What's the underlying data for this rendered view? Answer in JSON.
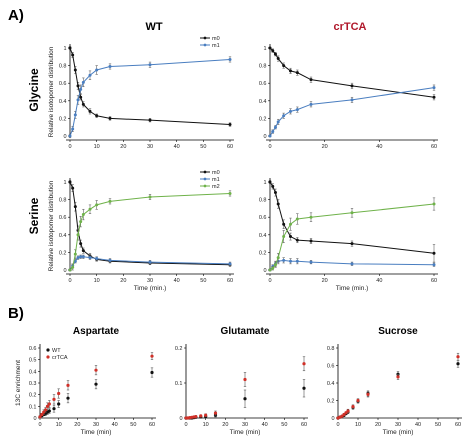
{
  "panel_a_label": "A)",
  "panel_b_label": "B)",
  "col_titles": [
    {
      "text": "WT",
      "color": "#000000"
    },
    {
      "text": "crTCA",
      "color": "#b0182b"
    }
  ],
  "row_titles": [
    "Glycine",
    "Serine"
  ],
  "colors": {
    "m0": "#111111",
    "m1": "#4a7ec0",
    "m2": "#6fb24a",
    "wt": "#111111",
    "crtca": "#d03028"
  },
  "chart_data": [
    {
      "id": "glycine-wt",
      "type": "line",
      "ylabel": "Relative isotopomer distribution",
      "xlabel": "",
      "xlim": [
        0,
        60
      ],
      "ylim": [
        0,
        1
      ],
      "xticks": [
        0,
        10,
        20,
        30,
        40,
        50,
        60
      ],
      "yticks": [
        0,
        0.2,
        0.4,
        0.6,
        0.8,
        1
      ],
      "ytick_labels": [
        "0",
        "0.2",
        "0.4",
        "0.6",
        "0.8",
        "1"
      ],
      "legend": [
        "m0",
        "m1"
      ],
      "series": [
        {
          "name": "m0",
          "color_key": "m0",
          "x": [
            0,
            1,
            2,
            3,
            4,
            5,
            7.5,
            10,
            15,
            30,
            60
          ],
          "y": [
            1.0,
            0.92,
            0.75,
            0.57,
            0.44,
            0.36,
            0.28,
            0.23,
            0.2,
            0.18,
            0.13
          ],
          "err": [
            0.02,
            0.03,
            0.04,
            0.04,
            0.03,
            0.03,
            0.03,
            0.02,
            0.02,
            0.02,
            0.02
          ]
        },
        {
          "name": "m1",
          "color_key": "m1",
          "x": [
            0,
            1,
            2,
            3,
            4,
            5,
            7.5,
            10,
            15,
            30,
            60
          ],
          "y": [
            0.0,
            0.08,
            0.24,
            0.41,
            0.53,
            0.61,
            0.69,
            0.75,
            0.79,
            0.81,
            0.87
          ],
          "err": [
            0.02,
            0.03,
            0.04,
            0.05,
            0.05,
            0.05,
            0.05,
            0.05,
            0.03,
            0.03,
            0.03
          ]
        }
      ]
    },
    {
      "id": "glycine-crtca",
      "type": "line",
      "ylabel": "",
      "xlabel": "",
      "xlim": [
        0,
        60
      ],
      "ylim": [
        0,
        1
      ],
      "xticks": [
        0,
        20,
        40,
        60
      ],
      "yticks": [
        0,
        0.2,
        0.4,
        0.6,
        0.8,
        1
      ],
      "ytick_labels": [
        "0",
        "0.2",
        "0.4",
        "0.6",
        "0.8",
        "1"
      ],
      "legend": [],
      "series": [
        {
          "name": "m0",
          "color_key": "m0",
          "x": [
            0,
            1,
            2,
            3,
            5,
            7.5,
            10,
            15,
            30,
            60
          ],
          "y": [
            1.0,
            0.97,
            0.93,
            0.88,
            0.8,
            0.74,
            0.72,
            0.64,
            0.57,
            0.44
          ],
          "err": [
            0.01,
            0.02,
            0.02,
            0.03,
            0.03,
            0.03,
            0.03,
            0.03,
            0.03,
            0.03
          ]
        },
        {
          "name": "m1",
          "color_key": "m1",
          "x": [
            0,
            1,
            2,
            3,
            5,
            7.5,
            10,
            15,
            30,
            60
          ],
          "y": [
            0.0,
            0.05,
            0.1,
            0.16,
            0.23,
            0.28,
            0.3,
            0.36,
            0.41,
            0.55
          ],
          "err": [
            0.01,
            0.02,
            0.02,
            0.03,
            0.03,
            0.03,
            0.03,
            0.03,
            0.03,
            0.03
          ]
        }
      ]
    },
    {
      "id": "serine-wt",
      "type": "line",
      "ylabel": "Relative isotopomer distribution",
      "xlabel": "Time (min.)",
      "xlim": [
        0,
        60
      ],
      "ylim": [
        0,
        1
      ],
      "xticks": [
        0,
        10,
        20,
        30,
        40,
        50,
        60
      ],
      "yticks": [
        0,
        0.2,
        0.4,
        0.6,
        0.8,
        1
      ],
      "ytick_labels": [
        "0",
        "0.2",
        "0.4",
        "0.6",
        "0.8",
        "1"
      ],
      "legend": [
        "m0",
        "m1",
        "m2"
      ],
      "series": [
        {
          "name": "m0",
          "color_key": "m0",
          "x": [
            0,
            1,
            2,
            3,
            4,
            5,
            7.5,
            10,
            15,
            30,
            60
          ],
          "y": [
            1.0,
            0.93,
            0.72,
            0.45,
            0.3,
            0.22,
            0.16,
            0.12,
            0.1,
            0.08,
            0.06
          ],
          "err": [
            0.02,
            0.04,
            0.05,
            0.05,
            0.04,
            0.03,
            0.03,
            0.02,
            0.02,
            0.02,
            0.02
          ]
        },
        {
          "name": "m1",
          "color_key": "m1",
          "x": [
            0,
            1,
            2,
            3,
            4,
            5,
            7.5,
            10,
            15,
            30,
            60
          ],
          "y": [
            0.0,
            0.05,
            0.1,
            0.14,
            0.15,
            0.15,
            0.14,
            0.13,
            0.11,
            0.09,
            0.07
          ],
          "err": [
            0.01,
            0.02,
            0.02,
            0.02,
            0.02,
            0.02,
            0.02,
            0.02,
            0.02,
            0.02,
            0.02
          ]
        },
        {
          "name": "m2",
          "color_key": "m2",
          "x": [
            0,
            1,
            2,
            3,
            4,
            5,
            7.5,
            10,
            15,
            30,
            60
          ],
          "y": [
            0.0,
            0.03,
            0.18,
            0.4,
            0.55,
            0.63,
            0.69,
            0.74,
            0.78,
            0.83,
            0.87
          ],
          "err": [
            0.01,
            0.03,
            0.05,
            0.06,
            0.06,
            0.06,
            0.05,
            0.05,
            0.03,
            0.03,
            0.03
          ]
        }
      ]
    },
    {
      "id": "serine-crtca",
      "type": "line",
      "ylabel": "",
      "xlabel": "Time (min.)",
      "xlim": [
        0,
        60
      ],
      "ylim": [
        0,
        1
      ],
      "xticks": [
        0,
        20,
        40,
        60
      ],
      "yticks": [
        0,
        0.2,
        0.4,
        0.6,
        0.8,
        1
      ],
      "ytick_labels": [
        "0",
        "0.2",
        "0.4",
        "0.6",
        "0.8",
        "1"
      ],
      "legend": [],
      "series": [
        {
          "name": "m0",
          "color_key": "m0",
          "x": [
            0,
            1,
            2,
            3,
            5,
            7.5,
            10,
            15,
            30,
            60
          ],
          "y": [
            1.0,
            0.95,
            0.88,
            0.75,
            0.52,
            0.38,
            0.34,
            0.33,
            0.3,
            0.19
          ],
          "err": [
            0.02,
            0.03,
            0.04,
            0.05,
            0.05,
            0.04,
            0.03,
            0.03,
            0.03,
            0.1
          ]
        },
        {
          "name": "m1",
          "color_key": "m1",
          "x": [
            0,
            1,
            2,
            3,
            5,
            7.5,
            10,
            15,
            30,
            60
          ],
          "y": [
            0.0,
            0.04,
            0.07,
            0.1,
            0.11,
            0.1,
            0.1,
            0.09,
            0.07,
            0.06
          ],
          "err": [
            0.01,
            0.02,
            0.03,
            0.03,
            0.03,
            0.03,
            0.03,
            0.02,
            0.02,
            0.02
          ]
        },
        {
          "name": "m2",
          "color_key": "m2",
          "x": [
            0,
            1,
            2,
            3,
            5,
            7.5,
            10,
            15,
            30,
            60
          ],
          "y": [
            0.0,
            0.02,
            0.06,
            0.14,
            0.38,
            0.52,
            0.58,
            0.6,
            0.65,
            0.75
          ],
          "err": [
            0.01,
            0.02,
            0.03,
            0.05,
            0.07,
            0.07,
            0.06,
            0.05,
            0.05,
            0.07
          ]
        }
      ]
    },
    {
      "id": "aspartate",
      "type": "scatter",
      "title": "Aspartate",
      "ylabel": "13C enrichment",
      "xlabel": "Time (min)",
      "xlim": [
        0,
        60
      ],
      "ylim": [
        0,
        0.6
      ],
      "xticks": [
        0,
        10,
        20,
        30,
        40,
        50,
        60
      ],
      "yticks": [
        0,
        0.1,
        0.2,
        0.3,
        0.4,
        0.5,
        0.6
      ],
      "ytick_labels": [
        "0",
        "0.1",
        "0.2",
        "0.3",
        "0.4",
        "0.5",
        "0.6"
      ],
      "legend": [
        "WT",
        "crTCA"
      ],
      "series": [
        {
          "name": "WT",
          "color_key": "wt",
          "x": [
            0,
            1,
            2,
            3,
            4,
            5,
            7.5,
            10,
            15,
            30,
            60
          ],
          "y": [
            0.01,
            0.02,
            0.03,
            0.04,
            0.05,
            0.06,
            0.08,
            0.12,
            0.17,
            0.29,
            0.39
          ],
          "err": [
            0.005,
            0.01,
            0.01,
            0.02,
            0.02,
            0.02,
            0.03,
            0.03,
            0.04,
            0.04,
            0.04
          ]
        },
        {
          "name": "crTCA",
          "color_key": "crtca",
          "x": [
            0,
            1,
            2,
            3,
            4,
            5,
            7.5,
            10,
            15,
            30,
            60
          ],
          "y": [
            0.01,
            0.03,
            0.05,
            0.07,
            0.1,
            0.12,
            0.16,
            0.21,
            0.28,
            0.41,
            0.53
          ],
          "err": [
            0.005,
            0.01,
            0.02,
            0.02,
            0.03,
            0.03,
            0.04,
            0.04,
            0.04,
            0.04,
            0.03
          ]
        }
      ]
    },
    {
      "id": "glutamate",
      "type": "scatter",
      "title": "Glutamate",
      "ylabel": "",
      "xlabel": "Time (min)",
      "xlim": [
        0,
        60
      ],
      "ylim": [
        0,
        0.2
      ],
      "xticks": [
        0,
        10,
        20,
        30,
        40,
        50,
        60
      ],
      "yticks": [
        0,
        0.1,
        0.2
      ],
      "ytick_labels": [
        "0",
        "0.1",
        "0.2"
      ],
      "legend": [],
      "series": [
        {
          "name": "WT",
          "color_key": "wt",
          "x": [
            0,
            1,
            2,
            3,
            4,
            5,
            7.5,
            10,
            15,
            30,
            60
          ],
          "y": [
            0.0,
            0.0,
            0.0,
            0.0,
            0.001,
            0.002,
            0.003,
            0.004,
            0.008,
            0.055,
            0.085
          ],
          "err": [
            0.001,
            0.001,
            0.001,
            0.001,
            0.002,
            0.002,
            0.003,
            0.004,
            0.005,
            0.025,
            0.025
          ]
        },
        {
          "name": "crTCA",
          "color_key": "crtca",
          "x": [
            0,
            1,
            2,
            3,
            4,
            5,
            7.5,
            10,
            15,
            30,
            60
          ],
          "y": [
            0.0,
            0.0,
            0.001,
            0.002,
            0.003,
            0.004,
            0.006,
            0.008,
            0.014,
            0.11,
            0.155
          ],
          "err": [
            0.001,
            0.001,
            0.001,
            0.002,
            0.002,
            0.003,
            0.003,
            0.004,
            0.006,
            0.02,
            0.02
          ]
        }
      ]
    },
    {
      "id": "sucrose",
      "type": "scatter",
      "title": "Sucrose",
      "ylabel": "",
      "xlabel": "Time (min)",
      "xlim": [
        0,
        60
      ],
      "ylim": [
        0,
        0.8
      ],
      "xticks": [
        0,
        10,
        20,
        30,
        40,
        50,
        60
      ],
      "yticks": [
        0,
        0.2,
        0.4,
        0.6,
        0.8
      ],
      "ytick_labels": [
        "0",
        "0.2",
        "0.4",
        "0.6",
        "0.8"
      ],
      "legend": [],
      "series": [
        {
          "name": "WT",
          "color_key": "wt",
          "x": [
            0,
            1,
            2,
            3,
            4,
            5,
            7.5,
            10,
            15,
            30,
            60
          ],
          "y": [
            0.0,
            0.01,
            0.02,
            0.03,
            0.05,
            0.07,
            0.12,
            0.19,
            0.28,
            0.5,
            0.62
          ],
          "err": [
            0.005,
            0.005,
            0.01,
            0.01,
            0.01,
            0.02,
            0.02,
            0.02,
            0.03,
            0.03,
            0.04
          ]
        },
        {
          "name": "crTCA",
          "color_key": "crtca",
          "x": [
            0,
            1,
            2,
            3,
            4,
            5,
            7.5,
            10,
            15,
            30,
            60
          ],
          "y": [
            0.0,
            0.01,
            0.02,
            0.04,
            0.06,
            0.08,
            0.13,
            0.2,
            0.27,
            0.47,
            0.7
          ],
          "err": [
            0.005,
            0.005,
            0.01,
            0.01,
            0.01,
            0.02,
            0.02,
            0.02,
            0.03,
            0.03,
            0.04
          ]
        }
      ]
    }
  ]
}
